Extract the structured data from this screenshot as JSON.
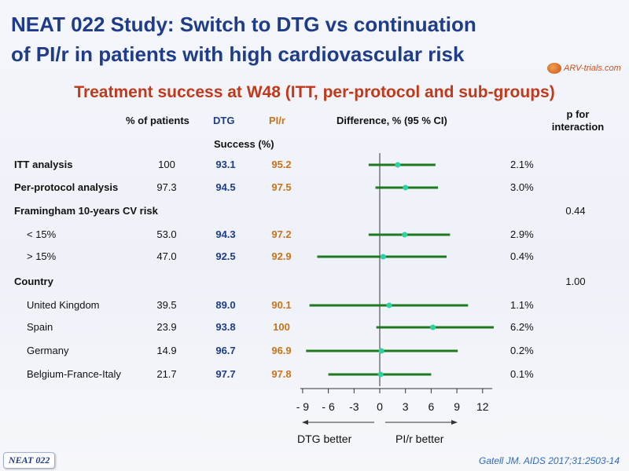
{
  "slide": {
    "title_line1": "NEAT 022 Study: Switch to DTG vs continuation",
    "title_line2": "of PI/r in patients with high cardiovascular risk",
    "logo_text": "ARV-trials.com",
    "subtitle": "Treatment success at W48 (ITT, per-protocol and sub-groups)",
    "badge": "NEAT 022",
    "citation": "Gatell JM. AIDS 2017;31:2503-14"
  },
  "table": {
    "headers": {
      "pct_patients": "% of patients",
      "dtg": "DTG",
      "pir": "PI/r",
      "success": "Success (%)",
      "difference": "Difference, % (95 % CI)",
      "p_interaction_line1": "p for",
      "p_interaction_line2": "interaction"
    },
    "rows": [
      {
        "label": "ITT analysis",
        "bold": true,
        "pct": "100",
        "dtg": "93.1",
        "pir": "95.2",
        "diff": "2.1%",
        "p": ""
      },
      {
        "label": "Per-protocol analysis",
        "bold": true,
        "pct": "97.3",
        "dtg": "94.5",
        "pir": "97.5",
        "diff": "3.0%",
        "p": ""
      },
      {
        "label": "Framingham 10-years CV risk",
        "bold": true,
        "pct": "",
        "dtg": "",
        "pir": "",
        "diff": "",
        "p": "0.44"
      },
      {
        "label": "< 15%",
        "bold": false,
        "pct": "53.0",
        "dtg": "94.3",
        "pir": "97.2",
        "diff": "2.9%",
        "p": ""
      },
      {
        "label": "> 15%",
        "bold": false,
        "pct": "47.0",
        "dtg": "92.5",
        "pir": "92.9",
        "diff": "0.4%",
        "p": ""
      },
      {
        "label": "Country",
        "bold": true,
        "pct": "",
        "dtg": "",
        "pir": "",
        "diff": "",
        "p": "1.00"
      },
      {
        "label": "United Kingdom",
        "bold": false,
        "pct": "39.5",
        "dtg": "89.0",
        "pir": "90.1",
        "diff": "1.1%",
        "p": ""
      },
      {
        "label": "Spain",
        "bold": false,
        "pct": "23.9",
        "dtg": "93.8",
        "pir": "100",
        "diff": "6.2%",
        "p": ""
      },
      {
        "label": "Germany",
        "bold": false,
        "pct": "14.9",
        "dtg": "96.7",
        "pir": "96.9",
        "diff": "0.2%",
        "p": ""
      },
      {
        "label": "Belgium-France-Italy",
        "bold": false,
        "pct": "21.7",
        "dtg": "97.7",
        "pir": "97.8",
        "diff": "0.1%",
        "p": ""
      }
    ]
  },
  "chart_data": {
    "type": "forest",
    "xlabel_left": "DTG better",
    "xlabel_right": "PI/r better",
    "xlim": [
      -10,
      13.5
    ],
    "xticks": [
      -9,
      -6,
      -3,
      0,
      3,
      6,
      9,
      12
    ],
    "xtick_labels": [
      "- 9",
      "- 6",
      "-3",
      "0",
      "3",
      "6",
      "9",
      "12"
    ],
    "reference_line": 0,
    "ci_color": "#1f7a1f",
    "point_color": "#2fd1a3",
    "points": [
      {
        "label": "ITT analysis",
        "estimate": 2.1,
        "lower": -1.3,
        "upper": 6.5
      },
      {
        "label": "Per-protocol analysis",
        "estimate": 3.0,
        "lower": -0.5,
        "upper": 6.8
      },
      {
        "label": "< 15%",
        "estimate": 2.9,
        "lower": -1.3,
        "upper": 8.2
      },
      {
        "label": "> 15%",
        "estimate": 0.4,
        "lower": -7.3,
        "upper": 7.8
      },
      {
        "label": "United Kingdom",
        "estimate": 1.1,
        "lower": -8.2,
        "upper": 10.3
      },
      {
        "label": "Spain",
        "estimate": 6.2,
        "lower": -0.4,
        "upper": 13.3
      },
      {
        "label": "Germany",
        "estimate": 0.2,
        "lower": -8.6,
        "upper": 9.1
      },
      {
        "label": "Belgium-France-Italy",
        "estimate": 0.1,
        "lower": -6.0,
        "upper": 6.0
      }
    ]
  }
}
